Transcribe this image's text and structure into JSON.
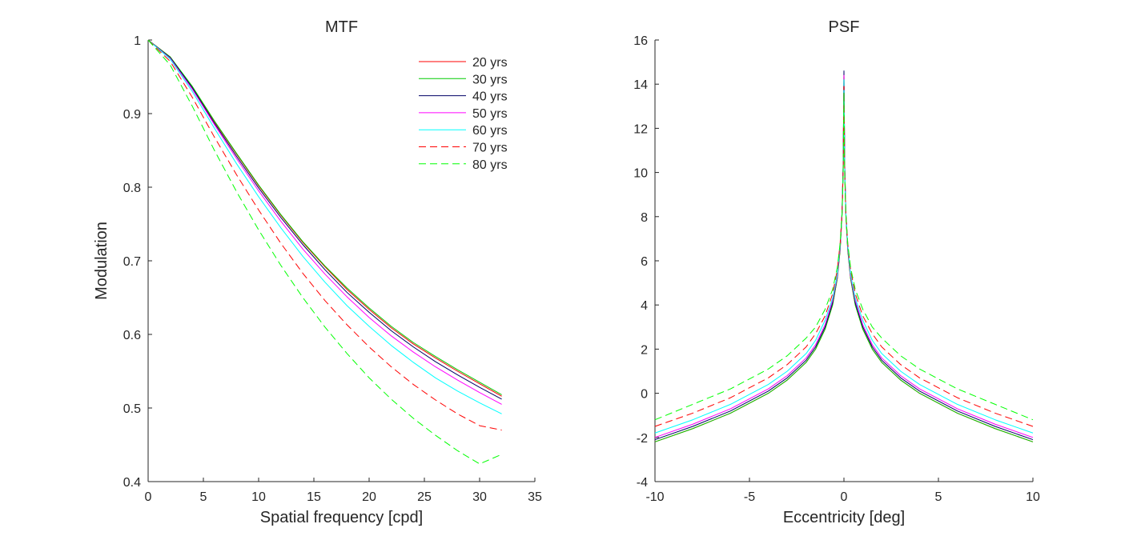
{
  "chart_data": [
    {
      "type": "line",
      "title": "MTF",
      "xlabel": "Spatial frequency [cpd]",
      "ylabel": "Modulation",
      "xlim": [
        0,
        35
      ],
      "ylim": [
        0.4,
        1
      ],
      "xticks": [
        0,
        5,
        10,
        15,
        20,
        25,
        30,
        35
      ],
      "yticks": [
        0.4,
        0.5,
        0.6,
        0.7,
        0.8,
        0.9,
        1
      ],
      "ytick_labels": [
        "0.4",
        "0.5",
        "0.6",
        "0.7",
        "0.8",
        "0.9",
        "1"
      ],
      "legend": "top-right",
      "grid": false,
      "x": [
        0,
        2,
        4,
        6,
        8,
        10,
        12,
        14,
        16,
        18,
        20,
        22,
        24,
        26,
        28,
        30,
        32
      ],
      "series": [
        {
          "name": "20 yrs",
          "color": "#ff0000",
          "dash": "solid",
          "values": [
            1.0,
            0.977,
            0.936,
            0.889,
            0.845,
            0.802,
            0.762,
            0.725,
            0.692,
            0.661,
            0.634,
            0.609,
            0.587,
            0.568,
            0.55,
            0.533,
            0.516
          ]
        },
        {
          "name": "30 yrs",
          "color": "#00cc00",
          "dash": "solid",
          "values": [
            1.0,
            0.977,
            0.937,
            0.89,
            0.846,
            0.803,
            0.763,
            0.726,
            0.693,
            0.663,
            0.636,
            0.611,
            0.589,
            0.57,
            0.552,
            0.535,
            0.518
          ]
        },
        {
          "name": "40 yrs",
          "color": "#000066",
          "dash": "solid",
          "values": [
            1.0,
            0.976,
            0.935,
            0.887,
            0.842,
            0.799,
            0.759,
            0.722,
            0.688,
            0.657,
            0.63,
            0.605,
            0.583,
            0.563,
            0.545,
            0.528,
            0.512
          ]
        },
        {
          "name": "50 yrs",
          "color": "#ff00ff",
          "dash": "solid",
          "values": [
            1.0,
            0.975,
            0.933,
            0.885,
            0.839,
            0.795,
            0.754,
            0.716,
            0.682,
            0.651,
            0.623,
            0.598,
            0.576,
            0.556,
            0.538,
            0.521,
            0.505
          ]
        },
        {
          "name": "60 yrs",
          "color": "#00ffff",
          "dash": "solid",
          "values": [
            1.0,
            0.974,
            0.93,
            0.88,
            0.832,
            0.787,
            0.745,
            0.706,
            0.671,
            0.639,
            0.611,
            0.585,
            0.562,
            0.541,
            0.523,
            0.507,
            0.492
          ]
        },
        {
          "name": "70 yrs",
          "color": "#ff0000",
          "dash": "dashed",
          "values": [
            1.0,
            0.971,
            0.922,
            0.868,
            0.817,
            0.769,
            0.724,
            0.683,
            0.646,
            0.613,
            0.583,
            0.556,
            0.532,
            0.511,
            0.492,
            0.476,
            0.47
          ]
        },
        {
          "name": "80 yrs",
          "color": "#00ff00",
          "dash": "dashed",
          "values": [
            1.0,
            0.966,
            0.91,
            0.85,
            0.794,
            0.742,
            0.694,
            0.65,
            0.61,
            0.574,
            0.541,
            0.512,
            0.486,
            0.463,
            0.442,
            0.424,
            0.437
          ]
        }
      ]
    },
    {
      "type": "line",
      "title": "PSF",
      "xlabel": "Eccentricity [deg]",
      "ylabel": "",
      "xlim": [
        -10,
        10
      ],
      "ylim": [
        -4,
        16
      ],
      "xticks": [
        -10,
        -5,
        0,
        5,
        10
      ],
      "yticks": [
        -4,
        -2,
        0,
        2,
        4,
        6,
        8,
        10,
        12,
        14,
        16
      ],
      "legend": "none",
      "grid": false,
      "x": [
        -10,
        -8,
        -6,
        -4,
        -3,
        -2,
        -1.5,
        -1,
        -0.6,
        -0.35,
        -0.2,
        -0.1,
        -0.04,
        0,
        0.04,
        0.1,
        0.2,
        0.35,
        0.6,
        1,
        1.5,
        2,
        3,
        4,
        6,
        8,
        10
      ],
      "series": [
        {
          "name": "20 yrs",
          "color": "#ff0000",
          "dash": "solid",
          "values": [
            -2.2,
            -1.6,
            -0.9,
            0.0,
            0.6,
            1.4,
            2.0,
            2.9,
            4.0,
            5.2,
            6.5,
            8.1,
            10.3,
            14.5,
            10.3,
            8.1,
            6.5,
            5.2,
            4.0,
            2.9,
            2.0,
            1.4,
            0.6,
            0.0,
            -0.9,
            -1.6,
            -2.2
          ]
        },
        {
          "name": "30 yrs",
          "color": "#00cc00",
          "dash": "solid",
          "values": [
            -2.2,
            -1.6,
            -0.9,
            0.0,
            0.6,
            1.4,
            2.0,
            2.9,
            4.0,
            5.2,
            6.5,
            8.1,
            10.3,
            14.5,
            10.3,
            8.1,
            6.5,
            5.2,
            4.0,
            2.9,
            2.0,
            1.4,
            0.6,
            0.0,
            -0.9,
            -1.6,
            -2.2
          ]
        },
        {
          "name": "40 yrs",
          "color": "#000066",
          "dash": "solid",
          "values": [
            -2.1,
            -1.5,
            -0.8,
            0.1,
            0.7,
            1.5,
            2.1,
            3.0,
            4.1,
            5.3,
            6.6,
            8.2,
            10.4,
            14.6,
            10.4,
            8.2,
            6.6,
            5.3,
            4.1,
            3.0,
            2.1,
            1.5,
            0.7,
            0.1,
            -0.8,
            -1.5,
            -2.1
          ]
        },
        {
          "name": "50 yrs",
          "color": "#ff00ff",
          "dash": "solid",
          "values": [
            -2.0,
            -1.4,
            -0.7,
            0.2,
            0.8,
            1.6,
            2.2,
            3.1,
            4.2,
            5.3,
            6.6,
            8.2,
            10.3,
            14.4,
            10.3,
            8.2,
            6.6,
            5.3,
            4.2,
            3.1,
            2.2,
            1.6,
            0.8,
            0.2,
            -0.7,
            -1.4,
            -2.0
          ]
        },
        {
          "name": "60 yrs",
          "color": "#00ffff",
          "dash": "solid",
          "values": [
            -1.8,
            -1.2,
            -0.5,
            0.4,
            1.0,
            1.8,
            2.4,
            3.3,
            4.3,
            5.4,
            6.7,
            8.2,
            10.2,
            14.2,
            10.2,
            8.2,
            6.7,
            5.4,
            4.3,
            3.3,
            2.4,
            1.8,
            1.0,
            0.4,
            -0.5,
            -1.2,
            -1.8
          ]
        },
        {
          "name": "70 yrs",
          "color": "#ff0000",
          "dash": "dashed",
          "values": [
            -1.5,
            -0.9,
            -0.2,
            0.7,
            1.3,
            2.1,
            2.7,
            3.5,
            4.5,
            5.6,
            6.8,
            8.2,
            10.1,
            13.9,
            10.1,
            8.2,
            6.8,
            5.6,
            4.5,
            3.5,
            2.7,
            2.1,
            1.3,
            0.7,
            -0.2,
            -0.9,
            -1.5
          ]
        },
        {
          "name": "80 yrs",
          "color": "#00ff00",
          "dash": "dashed",
          "values": [
            -1.2,
            -0.5,
            0.2,
            1.1,
            1.7,
            2.5,
            3.0,
            3.8,
            4.7,
            5.7,
            6.8,
            8.1,
            9.9,
            13.6,
            9.9,
            8.1,
            6.8,
            5.7,
            4.7,
            3.8,
            3.0,
            2.5,
            1.7,
            1.1,
            0.2,
            -0.5,
            -1.2
          ]
        }
      ]
    }
  ]
}
